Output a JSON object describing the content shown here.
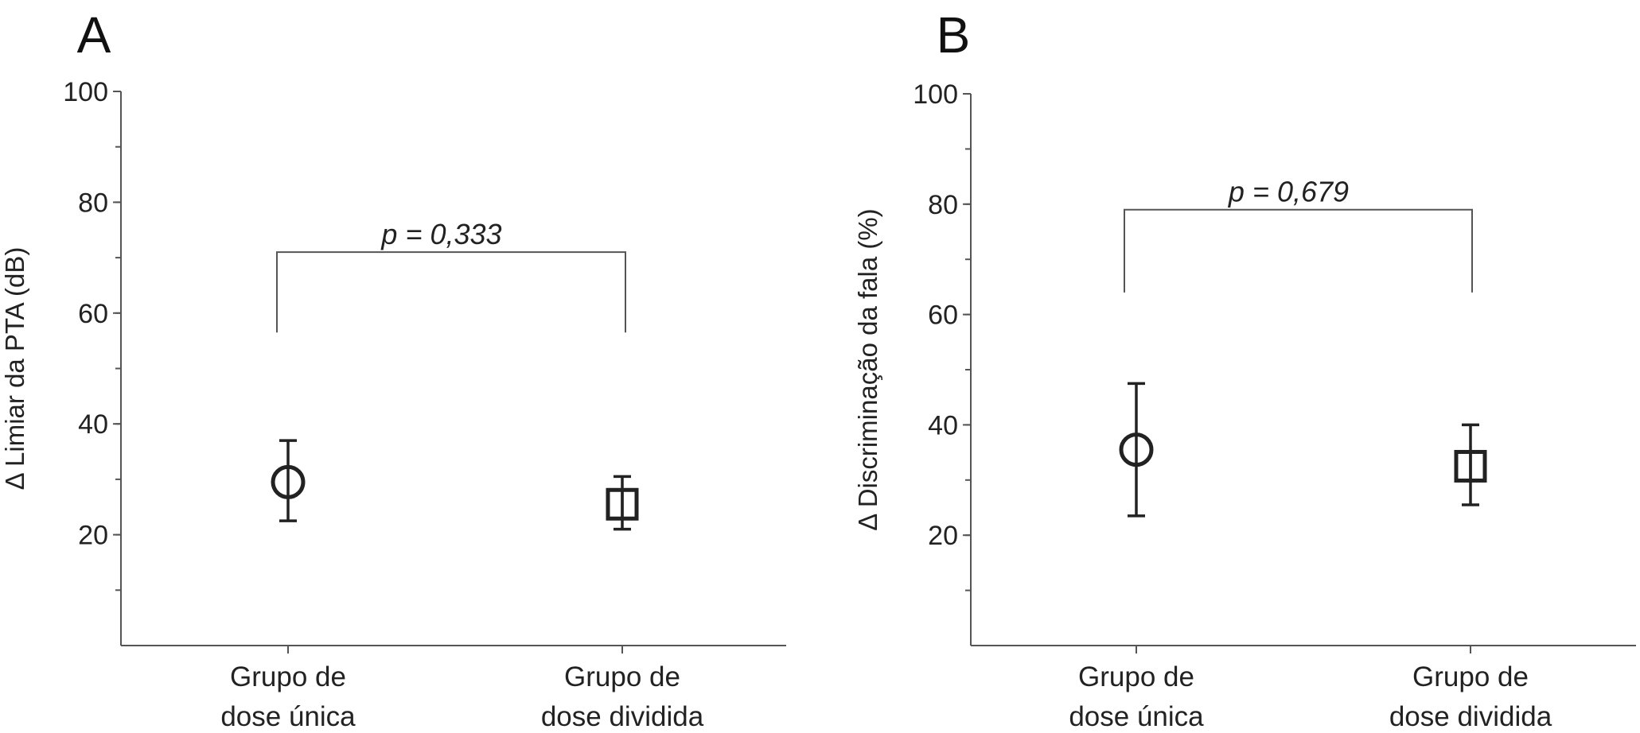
{
  "colors": {
    "ink": "#222222",
    "axis": "#555555",
    "background": "#ffffff"
  },
  "chart_data": [
    {
      "panel": "A",
      "type": "scatter",
      "ylabel": "Δ Limiar da PTA (dB)",
      "xlabel": "",
      "ylim": [
        0,
        100
      ],
      "y_ticks": [
        20,
        40,
        60,
        80,
        100
      ],
      "grid": false,
      "categories": [
        {
          "line1": "Grupo de",
          "line2": "dose única"
        },
        {
          "line1": "Grupo de",
          "line2": "dose dividida"
        }
      ],
      "points": [
        {
          "category": 0,
          "marker": "circle",
          "y": 29.5,
          "lower": 22.5,
          "upper": 37
        },
        {
          "category": 1,
          "marker": "square",
          "y": 25.5,
          "lower": 21,
          "upper": 30.5
        }
      ],
      "annotation": {
        "text": "p = 0,333",
        "bracket_y": 71,
        "left_end_y": 56.5,
        "right_end_y": 56.5
      }
    },
    {
      "panel": "B",
      "type": "scatter",
      "ylabel": "Δ Discriminação da fala (%)",
      "xlabel": "",
      "ylim": [
        0,
        100
      ],
      "y_ticks": [
        20,
        40,
        60,
        80,
        100
      ],
      "grid": false,
      "categories": [
        {
          "line1": "Grupo de",
          "line2": "dose única"
        },
        {
          "line1": "Grupo de",
          "line2": "dose dividida"
        }
      ],
      "points": [
        {
          "category": 0,
          "marker": "circle",
          "y": 35.5,
          "lower": 23.5,
          "upper": 47.5
        },
        {
          "category": 1,
          "marker": "square",
          "y": 32.5,
          "lower": 25.5,
          "upper": 40
        }
      ],
      "annotation": {
        "text": "p = 0,679",
        "bracket_y": 79,
        "left_end_y": 64,
        "right_end_y": 64
      }
    }
  ]
}
